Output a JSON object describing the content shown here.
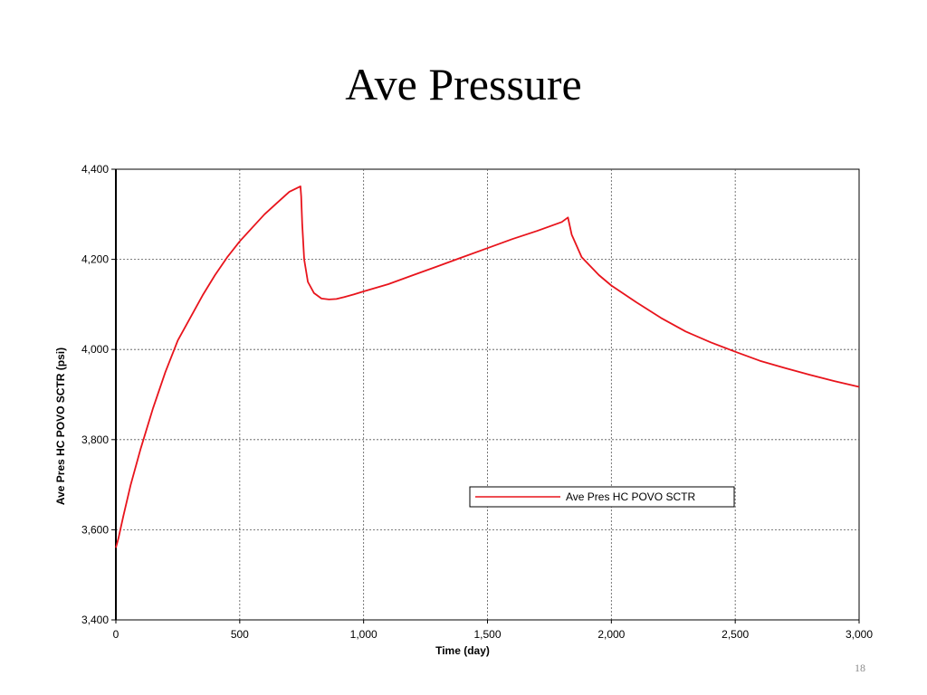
{
  "slide": {
    "title": "Ave Pressure",
    "page_number": "18"
  },
  "chart_data": {
    "type": "line",
    "title": "",
    "xlabel": "Time (day)",
    "ylabel": "Ave Pres HC POVO SCTR (psi)",
    "xlim": [
      0,
      3000
    ],
    "ylim": [
      3400,
      4400
    ],
    "x_ticks": [
      0,
      500,
      1000,
      1500,
      2000,
      2500,
      3000
    ],
    "x_tick_labels": [
      "0",
      "500",
      "1,000",
      "1,500",
      "2,000",
      "2,500",
      "3,000"
    ],
    "y_ticks": [
      3400,
      3600,
      3800,
      4000,
      4200,
      4400
    ],
    "y_tick_labels": [
      "3,400",
      "3,600",
      "3,800",
      "4,000",
      "4,200",
      "4,400"
    ],
    "grid": true,
    "legend_position": "center-right",
    "series": [
      {
        "name": "Ave Pres HC POVO SCTR",
        "color": "#e8141c",
        "x": [
          0,
          10,
          30,
          60,
          100,
          150,
          200,
          250,
          300,
          350,
          400,
          450,
          500,
          550,
          600,
          650,
          700,
          745,
          748,
          752,
          760,
          775,
          800,
          830,
          860,
          890,
          920,
          960,
          1000,
          1100,
          1200,
          1300,
          1400,
          1500,
          1600,
          1700,
          1800,
          1825,
          1826,
          1840,
          1880,
          1950,
          2000,
          2100,
          2200,
          2300,
          2400,
          2500,
          2600,
          2700,
          2800,
          2900,
          3000
        ],
        "y": [
          3560,
          3580,
          3630,
          3700,
          3780,
          3870,
          3950,
          4020,
          4070,
          4120,
          4165,
          4205,
          4240,
          4270,
          4300,
          4325,
          4350,
          4362,
          4340,
          4280,
          4200,
          4150,
          4125,
          4113,
          4111,
          4112,
          4116,
          4122,
          4129,
          4145,
          4165,
          4185,
          4205,
          4225,
          4245,
          4263,
          4283,
          4293,
          4290,
          4255,
          4205,
          4165,
          4142,
          4105,
          4070,
          4040,
          4016,
          3995,
          3975,
          3959,
          3944,
          3930,
          3917
        ]
      }
    ]
  }
}
